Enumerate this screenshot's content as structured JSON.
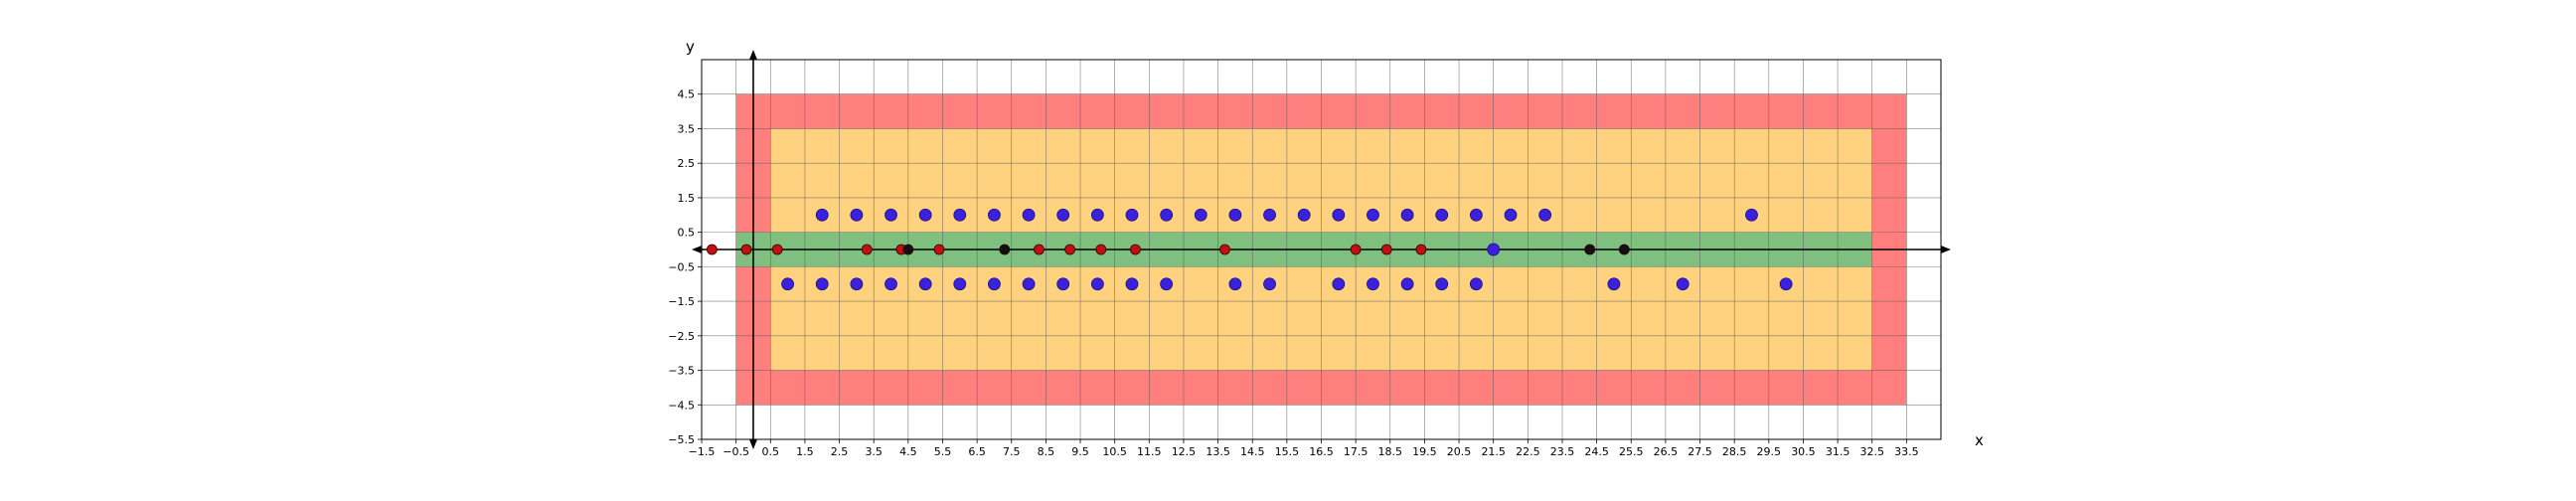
{
  "chart_data": {
    "type": "scatter",
    "xlabel": "x",
    "ylabel": "y",
    "xlim": [
      -1.5,
      34.5
    ],
    "ylim": [
      -5.5,
      5.5
    ],
    "grid": true,
    "x_ticks": [
      -1.5,
      -0.5,
      0.5,
      1.5,
      2.5,
      3.5,
      4.5,
      5.5,
      6.5,
      7.5,
      8.5,
      9.5,
      10.5,
      11.5,
      12.5,
      13.5,
      14.5,
      15.5,
      16.5,
      17.5,
      18.5,
      19.5,
      20.5,
      21.5,
      22.5,
      23.5,
      24.5,
      25.5,
      26.5,
      27.5,
      28.5,
      29.5,
      30.5,
      31.5,
      32.5,
      33.5
    ],
    "y_ticks": [
      -5.5,
      -4.5,
      -3.5,
      -2.5,
      -1.5,
      -0.5,
      0.5,
      1.5,
      2.5,
      3.5,
      4.5
    ],
    "regions": [
      {
        "color": "#ff7f7f",
        "x": [
          -0.5,
          33.5
        ],
        "y": [
          -4.5,
          4.5
        ]
      },
      {
        "color": "#ffd27f",
        "x": [
          0.5,
          32.5
        ],
        "y": [
          -3.5,
          3.5
        ]
      },
      {
        "color": "#ffd27f",
        "x": [
          1.5,
          32.5
        ],
        "y": [
          -3.5,
          3.5
        ]
      },
      {
        "color": "#7fbf7f",
        "x": [
          -0.5,
          32.5
        ],
        "y": [
          -0.5,
          0.5
        ]
      }
    ],
    "series": [
      {
        "color": "#3a22dd",
        "points": [
          [
            2,
            1
          ],
          [
            3,
            1
          ],
          [
            4,
            1
          ],
          [
            5,
            1
          ],
          [
            6,
            1
          ],
          [
            7,
            1
          ],
          [
            8,
            1
          ],
          [
            9,
            1
          ],
          [
            10,
            1
          ],
          [
            11,
            1
          ],
          [
            12,
            1
          ],
          [
            13,
            1
          ],
          [
            14,
            1
          ],
          [
            15,
            1
          ],
          [
            16,
            1
          ],
          [
            17,
            1
          ],
          [
            18,
            1
          ],
          [
            19,
            1
          ],
          [
            20,
            1
          ],
          [
            21,
            1
          ],
          [
            22,
            1
          ],
          [
            23,
            1
          ],
          [
            29,
            1
          ],
          [
            1,
            -1
          ],
          [
            2,
            -1
          ],
          [
            3,
            -1
          ],
          [
            4,
            -1
          ],
          [
            5,
            -1
          ],
          [
            6,
            -1
          ],
          [
            7,
            -1
          ],
          [
            8,
            -1
          ],
          [
            9,
            -1
          ],
          [
            10,
            -1
          ],
          [
            11,
            -1
          ],
          [
            12,
            -1
          ],
          [
            14,
            -1
          ],
          [
            15,
            -1
          ],
          [
            17,
            -1
          ],
          [
            18,
            -1
          ],
          [
            19,
            -1
          ],
          [
            20,
            -1
          ],
          [
            21,
            -1
          ],
          [
            25,
            -1
          ],
          [
            27,
            -1
          ],
          [
            30,
            -1
          ],
          [
            21.5,
            0
          ]
        ]
      },
      {
        "color": "#c01010",
        "points": [
          [
            -1.2,
            0
          ],
          [
            -0.2,
            0
          ],
          [
            0.7,
            0
          ],
          [
            3.3,
            0
          ],
          [
            4.3,
            0
          ],
          [
            5.4,
            0
          ],
          [
            8.3,
            0
          ],
          [
            9.2,
            0
          ],
          [
            10.1,
            0
          ],
          [
            11.1,
            0
          ],
          [
            13.7,
            0
          ],
          [
            17.5,
            0
          ],
          [
            18.4,
            0
          ],
          [
            19.4,
            0
          ]
        ]
      },
      {
        "color": "#111111",
        "points": [
          [
            4.5,
            0
          ],
          [
            7.3,
            0
          ],
          [
            24.3,
            0
          ],
          [
            25.3,
            0
          ]
        ]
      }
    ]
  }
}
